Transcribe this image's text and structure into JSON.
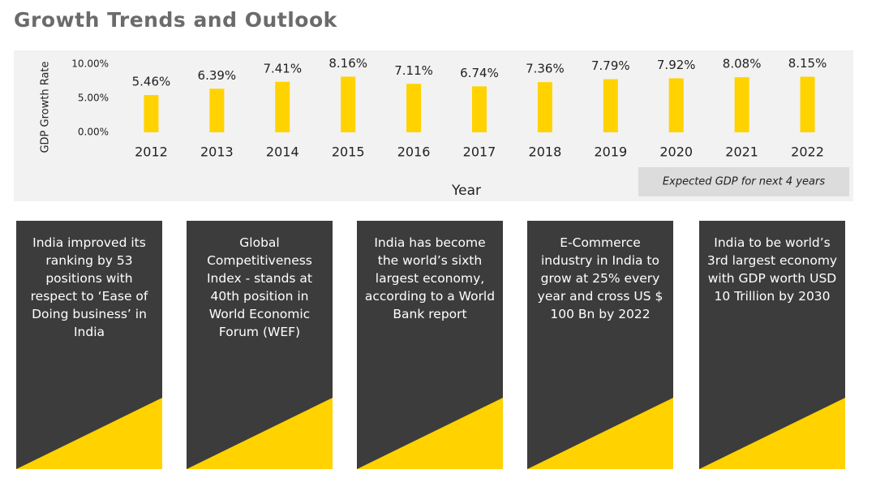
{
  "title": "Growth Trends and Outlook",
  "chart_data": {
    "type": "bar",
    "ylabel": "GDP Growth Rate",
    "xlabel": "Year",
    "categories": [
      "2012",
      "2013",
      "2014",
      "2015",
      "2016",
      "2017",
      "2018",
      "2019",
      "2020",
      "2021",
      "2022"
    ],
    "values": [
      5.46,
      6.39,
      7.41,
      8.16,
      7.11,
      6.74,
      7.36,
      7.79,
      7.92,
      8.08,
      8.15
    ],
    "value_labels": [
      "5.46%",
      "6.39%",
      "7.41%",
      "8.16%",
      "7.11%",
      "6.74%",
      "7.36%",
      "7.79%",
      "7.92%",
      "8.08%",
      "8.15%"
    ],
    "color": "#ffd200",
    "ylim": [
      0,
      10
    ],
    "yticks": [
      {
        "value": 0,
        "label": "0.00%"
      },
      {
        "value": 5,
        "label": "5.00%"
      },
      {
        "value": 10,
        "label": "10.00%"
      }
    ],
    "annotation": "Expected GDP for next 4 years"
  },
  "cards": [
    "India improved its ranking by 53 positions with respect to ‘Ease of Doing business’ in India",
    "Global Competitiveness Index - stands at 40th position in World Economic Forum (WEF)",
    "India has become the world’s sixth largest economy, according to a World Bank report",
    "E-Commerce industry in India to grow at 25% every year and cross US $ 100 Bn by 2022",
    "India to be world’s 3rd largest economy with GDP worth USD 10 Trillion by 2030"
  ]
}
